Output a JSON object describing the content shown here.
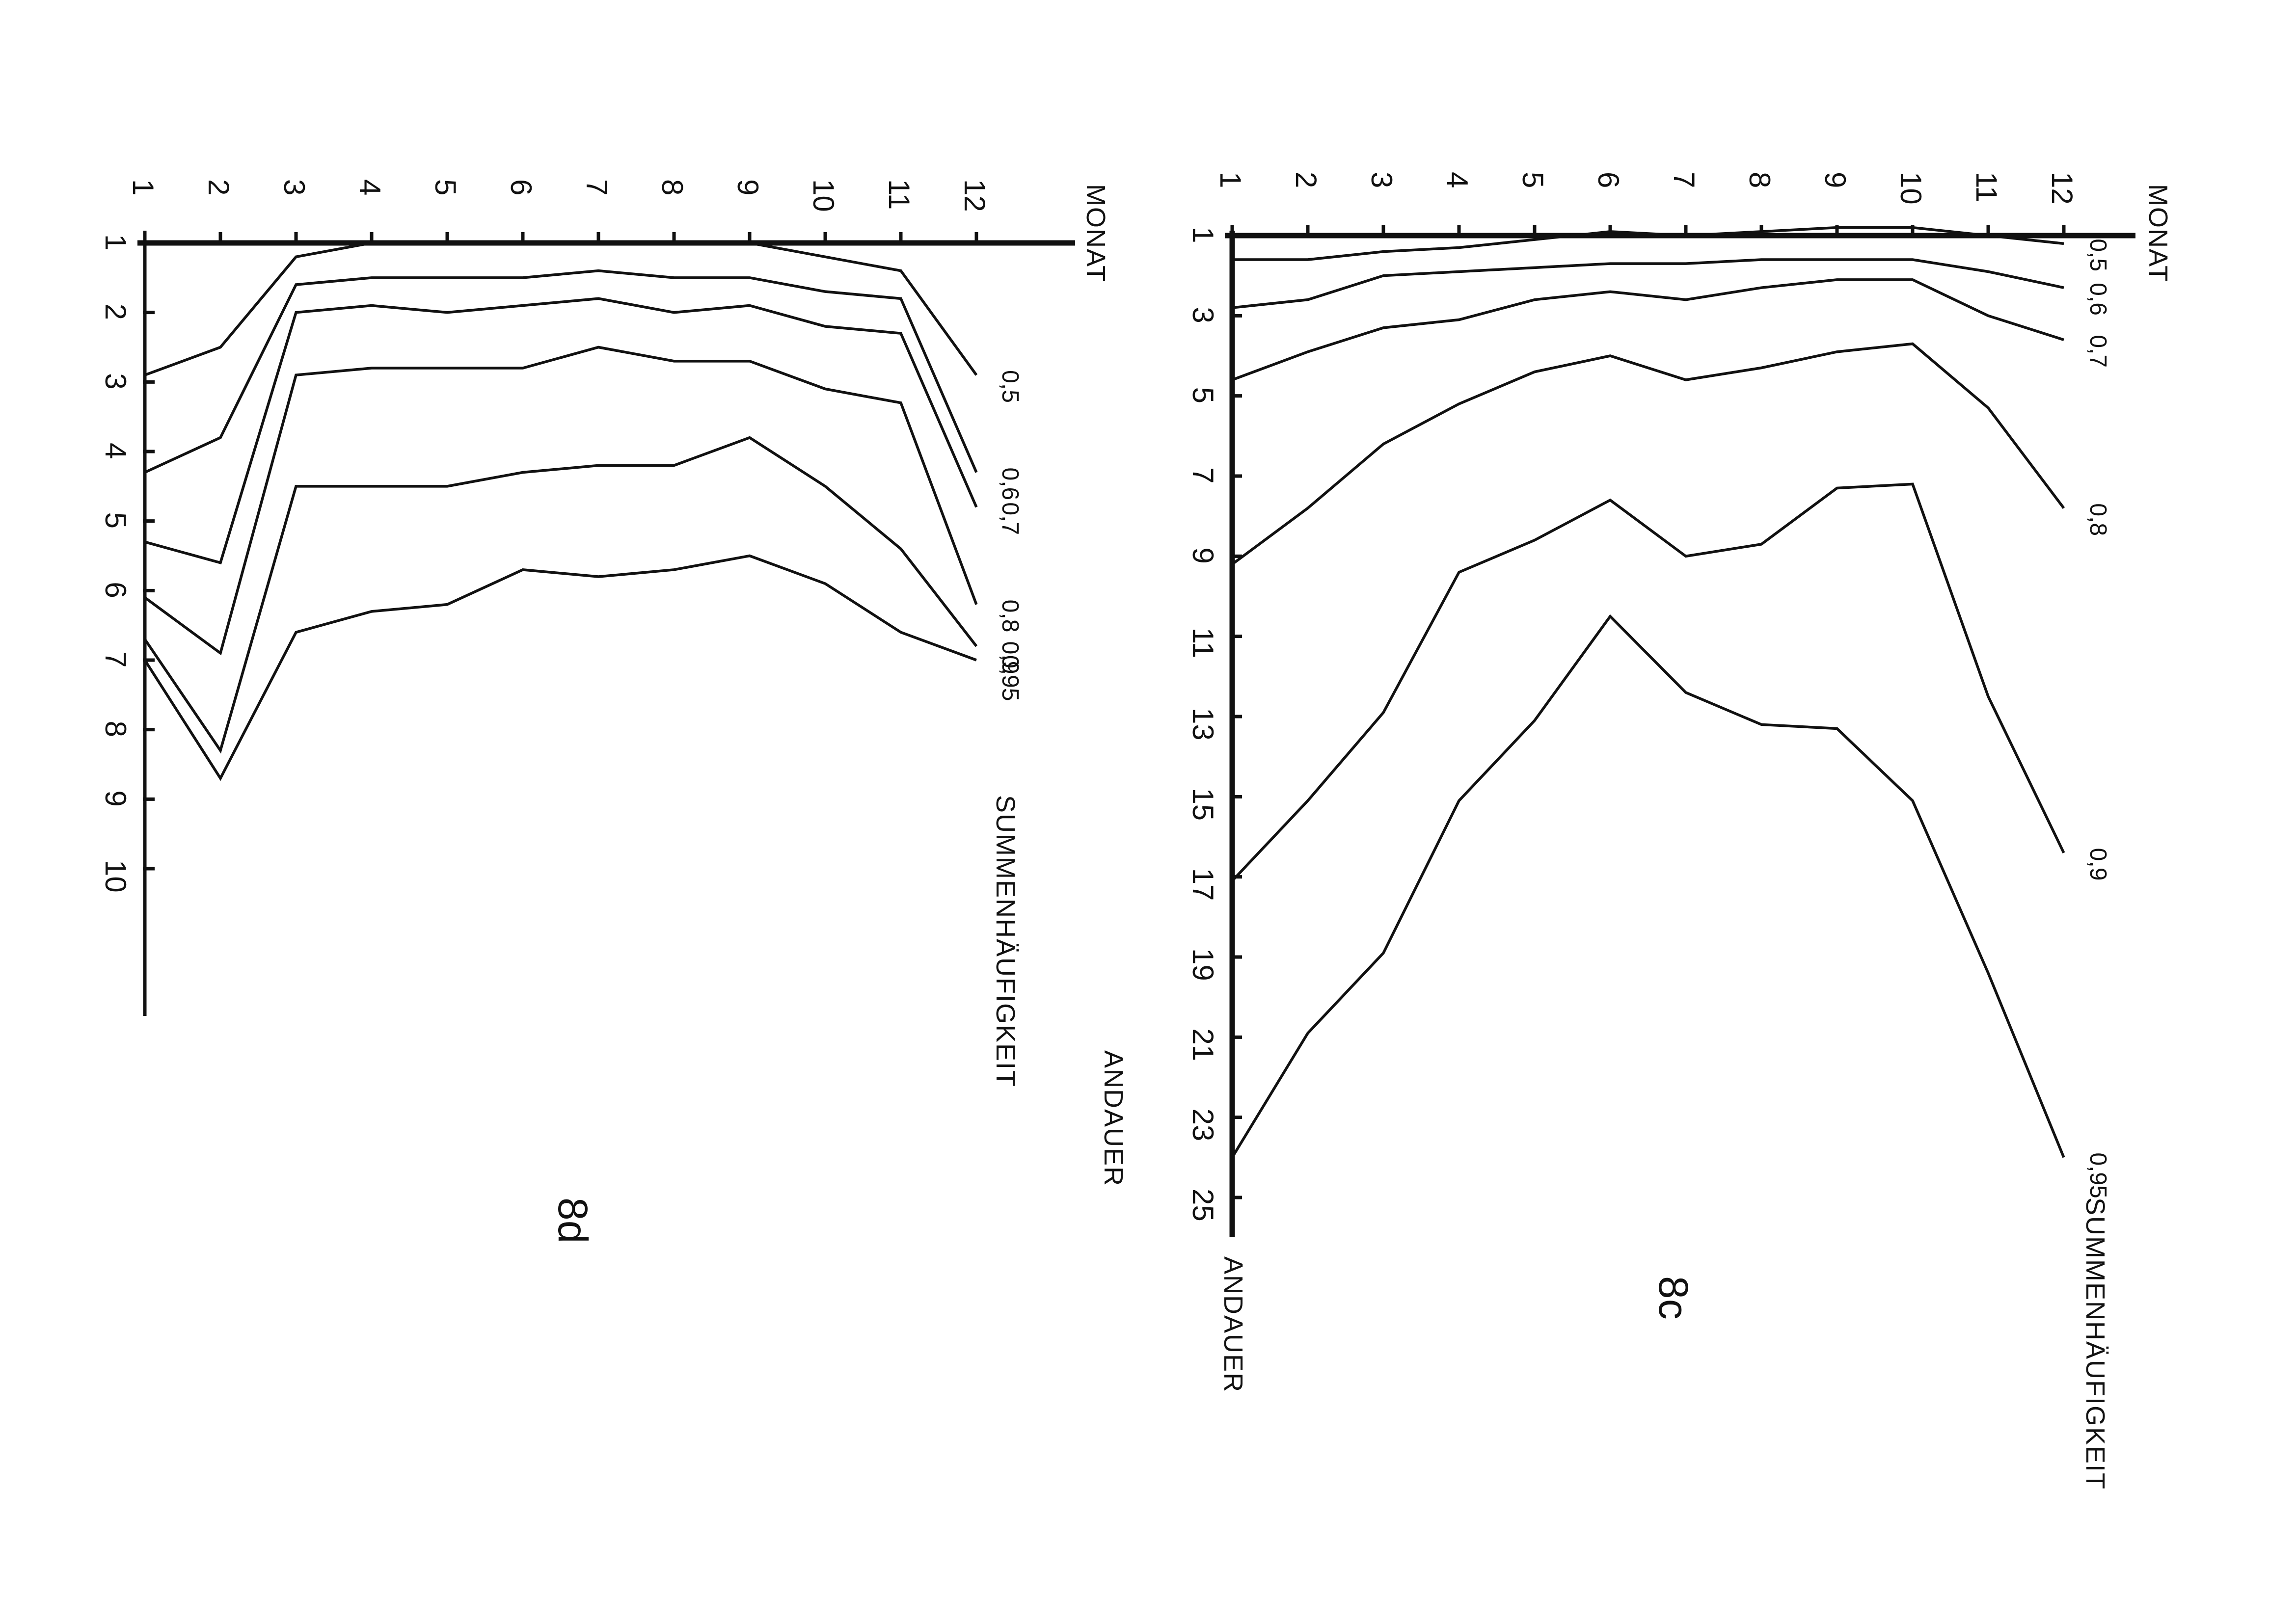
{
  "chart_data": [
    {
      "type": "line",
      "panel_label": "8c",
      "x_axis_title": "MONAT",
      "y_axis_title": "ANDAUER",
      "legend_title": "SUMMENHÄUFIGKEIT",
      "x_ticks": [
        "1",
        "2",
        "3",
        "4",
        "5",
        "6",
        "7",
        "8",
        "9",
        "10",
        "11",
        "12"
      ],
      "y_ticks": [
        "1",
        "3",
        "5",
        "7",
        "9",
        "11",
        "13",
        "15",
        "17",
        "19",
        "21",
        "23",
        "25"
      ],
      "xlim": [
        1,
        12
      ],
      "ylim": [
        1,
        25
      ],
      "x": [
        1,
        2,
        3,
        4,
        5,
        6,
        7,
        8,
        9,
        10,
        11,
        12
      ],
      "series": [
        {
          "name": "0,5",
          "values": [
            1.6,
            1.6,
            1.4,
            1.3,
            1.1,
            0.9,
            1.0,
            0.9,
            0.8,
            0.8,
            1.0,
            1.2
          ]
        },
        {
          "name": "0,6",
          "values": [
            2.8,
            2.6,
            2.0,
            1.9,
            1.8,
            1.7,
            1.7,
            1.6,
            1.6,
            1.6,
            1.9,
            2.3
          ]
        },
        {
          "name": "0,7",
          "values": [
            4.6,
            3.9,
            3.3,
            3.1,
            2.6,
            2.4,
            2.6,
            2.3,
            2.1,
            2.1,
            3.0,
            3.6
          ]
        },
        {
          "name": "0,8",
          "values": [
            9.2,
            7.8,
            6.2,
            5.2,
            4.4,
            4.0,
            4.6,
            4.3,
            3.9,
            3.7,
            5.3,
            7.8
          ]
        },
        {
          "name": "0,9",
          "values": [
            17.1,
            15.1,
            12.9,
            9.4,
            8.6,
            7.6,
            9.0,
            8.7,
            7.3,
            7.2,
            12.5,
            16.4
          ]
        },
        {
          "name": "0,95",
          "values": [
            24.0,
            20.9,
            18.9,
            15.1,
            13.1,
            10.5,
            12.4,
            13.2,
            13.3,
            15.1,
            19.4,
            24.0
          ]
        }
      ]
    },
    {
      "type": "line",
      "panel_label": "8d",
      "x_axis_title": "MONAT",
      "y_axis_title": "ANDAUER",
      "legend_title": "SUMMENHÄUFIGKEIT",
      "x_ticks": [
        "1",
        "2",
        "3",
        "4",
        "5",
        "6",
        "7",
        "8",
        "9",
        "10",
        "11",
        "12"
      ],
      "y_ticks": [
        "1",
        "2",
        "3",
        "4",
        "5",
        "6",
        "7",
        "8",
        "9",
        "10"
      ],
      "xlim": [
        1,
        12
      ],
      "ylim": [
        1,
        10
      ],
      "x": [
        1,
        2,
        3,
        4,
        5,
        6,
        7,
        8,
        9,
        10,
        11,
        12
      ],
      "series": [
        {
          "name": "0,5",
          "values": [
            2.9,
            2.5,
            1.2,
            1.0,
            1.0,
            1.0,
            1.0,
            1.0,
            1.0,
            1.2,
            1.4,
            2.9
          ]
        },
        {
          "name": "0,6",
          "values": [
            4.3,
            3.8,
            1.6,
            1.5,
            1.5,
            1.5,
            1.4,
            1.5,
            1.5,
            1.7,
            1.8,
            4.3
          ]
        },
        {
          "name": "0,7",
          "values": [
            5.3,
            5.6,
            2.0,
            1.9,
            2.0,
            1.9,
            1.8,
            2.0,
            1.9,
            2.2,
            2.3,
            4.8
          ]
        },
        {
          "name": "0,8",
          "values": [
            6.1,
            6.9,
            2.9,
            2.8,
            2.8,
            2.8,
            2.5,
            2.7,
            2.7,
            3.1,
            3.3,
            6.2
          ]
        },
        {
          "name": "0,9",
          "values": [
            6.7,
            8.3,
            4.5,
            4.5,
            4.5,
            4.3,
            4.2,
            4.2,
            3.8,
            4.5,
            5.4,
            6.8
          ]
        },
        {
          "name": "0,95",
          "values": [
            7.0,
            8.7,
            6.6,
            6.3,
            6.2,
            5.7,
            5.8,
            5.7,
            5.5,
            5.9,
            6.6,
            7.0
          ]
        }
      ]
    }
  ]
}
